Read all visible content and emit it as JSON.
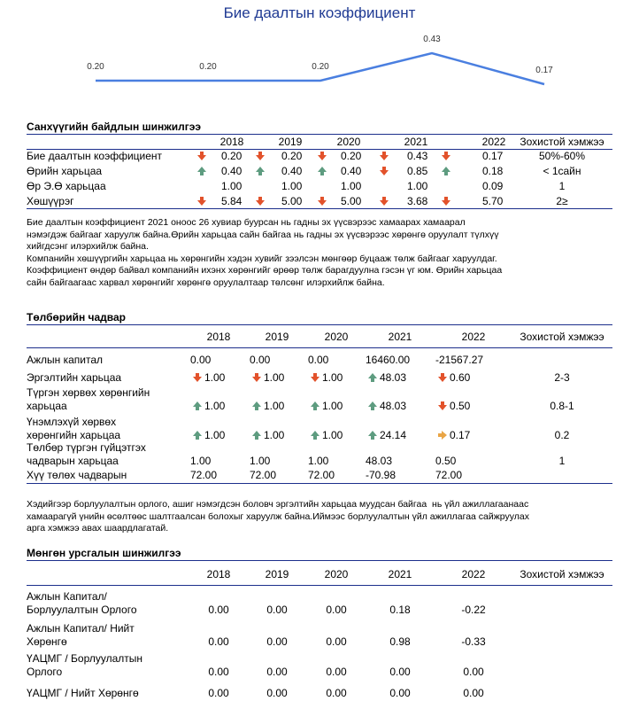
{
  "chart_data": {
    "type": "line",
    "title": "Бие даалтын коэффициент",
    "values": [
      0.2,
      0.2,
      0.2,
      0.43,
      0.17
    ],
    "value_labels": [
      "0.20",
      "0.20",
      "0.20",
      "0.43",
      "0.17"
    ],
    "color": "#4a7fe0"
  },
  "sections": [
    {
      "title": "Санхүүгийн байдлын шинжилгээ",
      "header": [
        "2018",
        "2019",
        "2020",
        "2021",
        "2022",
        "Зохистой хэмжээ"
      ],
      "rows": [
        {
          "label": "Бие даалтын коэффициент",
          "cells": [
            "0.20",
            "0.20",
            "0.20",
            "0.43",
            "0.17"
          ],
          "arrows": [
            "down",
            "down",
            "down",
            "down",
            "down"
          ],
          "norm": "50%-60%"
        },
        {
          "label": "Өрийн харьцаа",
          "cells": [
            "0.40",
            "0.40",
            "0.40",
            "0.85",
            "0.18"
          ],
          "arrows": [
            "up",
            "up",
            "up",
            "down",
            "up"
          ],
          "norm": "< 1сайн"
        },
        {
          "label": "Өр Э.Ө харьцаа",
          "cells": [
            "1.00",
            "1.00",
            "1.00",
            "1.00",
            "0.09"
          ],
          "arrows": [
            null,
            null,
            null,
            null,
            null
          ],
          "norm": "1"
        },
        {
          "label": "Хөшүүрэг",
          "cells": [
            "5.84",
            "5.00",
            "5.00",
            "3.68",
            "5.70"
          ],
          "arrows": [
            "down",
            "down",
            "down",
            "down",
            "down"
          ],
          "norm": "2≥"
        }
      ]
    },
    {
      "title": "Төлбөрийн чадвар",
      "header": [
        "2018",
        "2019",
        "2020",
        "2021",
        "2022",
        "Зохистой хэмжээ"
      ],
      "rows": [
        {
          "label": "Ажлын капитал",
          "cells": [
            "0.00",
            "0.00",
            "0.00",
            "16460.00",
            "-21567.27"
          ],
          "arrows": [
            null,
            null,
            null,
            null,
            null
          ]
        },
        {
          "label": "Эргэлтийн харьцаа",
          "cells": [
            "1.00",
            "1.00",
            "1.00",
            "48.03",
            "0.60"
          ],
          "arrows": [
            "down",
            "down",
            "down",
            "up",
            "down"
          ],
          "norm": "2-3"
        },
        {
          "label": "Түргэн хөрвөх хөрөнгийн харьцаа",
          "cells": [
            "1.00",
            "1.00",
            "1.00",
            "48.03",
            "0.50"
          ],
          "arrows": [
            "up",
            "up",
            "up",
            "up",
            "down"
          ],
          "norm": "0.8-1"
        },
        {
          "label": "Үнэмлэхүй хөрвөх хөрөнгийн харьцаа",
          "cells": [
            "1.00",
            "1.00",
            "1.00",
            "24.14",
            "0.17"
          ],
          "arrows": [
            "up",
            "up",
            "up",
            "up",
            "right"
          ],
          "norm": "0.2"
        },
        {
          "label": "Төлбөр түргэн гүйцэтгэх чадварын харьцаа",
          "cells": [
            "1.00",
            "1.00",
            "1.00",
            "48.03",
            "0.50"
          ],
          "arrows": [
            null,
            null,
            null,
            null,
            null
          ],
          "norm": "1"
        },
        {
          "label": "Хүү төлөх чадварын",
          "cells": [
            "72.00",
            "72.00",
            "72.00",
            "-70.98",
            "72.00"
          ],
          "arrows": [
            null,
            null,
            null,
            null,
            null
          ]
        }
      ]
    },
    {
      "title": "Мөнгөн урсгалын шинжилгээ",
      "header": [
        "2018",
        "2019",
        "2020",
        "2021",
        "2022",
        "Зохистой хэмжээ"
      ],
      "rows": [
        {
          "label": "Ажлын Капитал/ Борлуулалтын Орлого",
          "cells": [
            "0.00",
            "0.00",
            "0.00",
            "0.18",
            "-0.22"
          ]
        },
        {
          "label": "Ажлын Капитал/ Нийт Хөрөнгө",
          "cells": [
            "0.00",
            "0.00",
            "0.00",
            "0.98",
            "-0.33"
          ]
        },
        {
          "label": "ҮАЦМГ / Борлуулалтын Орлого",
          "cells": [
            "0.00",
            "0.00",
            "0.00",
            "0.00",
            "0.00"
          ]
        },
        {
          "label": "ҮАЦМГ / Нийт Хөрөнгө",
          "cells": [
            "0.00",
            "0.00",
            "0.00",
            "0.00",
            "0.00"
          ]
        }
      ]
    }
  ],
  "paragraphs": [
    {
      "lines": [
        "Бие даалтын коэффициент 2021 оноос 26 хувиар буурсан нь гадны эх үүсвэрээс хамаарах хамаарал",
        "нэмэгдэж байгааг харуулж байна.Өрийн харьцаа сайн байгаа нь гадны эх үүсвэрээс хөрөнгө оруулалт түлхүү",
        "хийгдсэнг илэрхийлж байна.",
        "Компанийн хөшүүргийн харьцаа нь хөрөнгийн хэдэн хувийг зээлсэн мөнгөөр буцааж төлж байгааг харуулдаг.",
        "Коэффициент өндөр байвал компанийн ихэнх хөрөнгийг өрөөр төлж барагдуулна гэсэн үг юм. Өрийн харьцаа",
        "сайн байгаагаас харвал хөрөнгийг хөрөнгө оруулалтаар төлсөнг илэрхийлж байна."
      ]
    },
    {
      "lines": [
        "Хэдийгээр борлуулалтын орлого, ашиг нэмэгдсэн боловч эргэлтийн харьцаа муудсан байгаа  нь үйл ажиллагаанаас",
        "хамаарагүй үнийн өсөлтөөс шалтгаалсан болохыг харуулж байна.Иймээс борлуулалтын үйл ажиллагаа сайжруулах",
        "арга хэмжээ авах шаардлагатай."
      ]
    }
  ]
}
